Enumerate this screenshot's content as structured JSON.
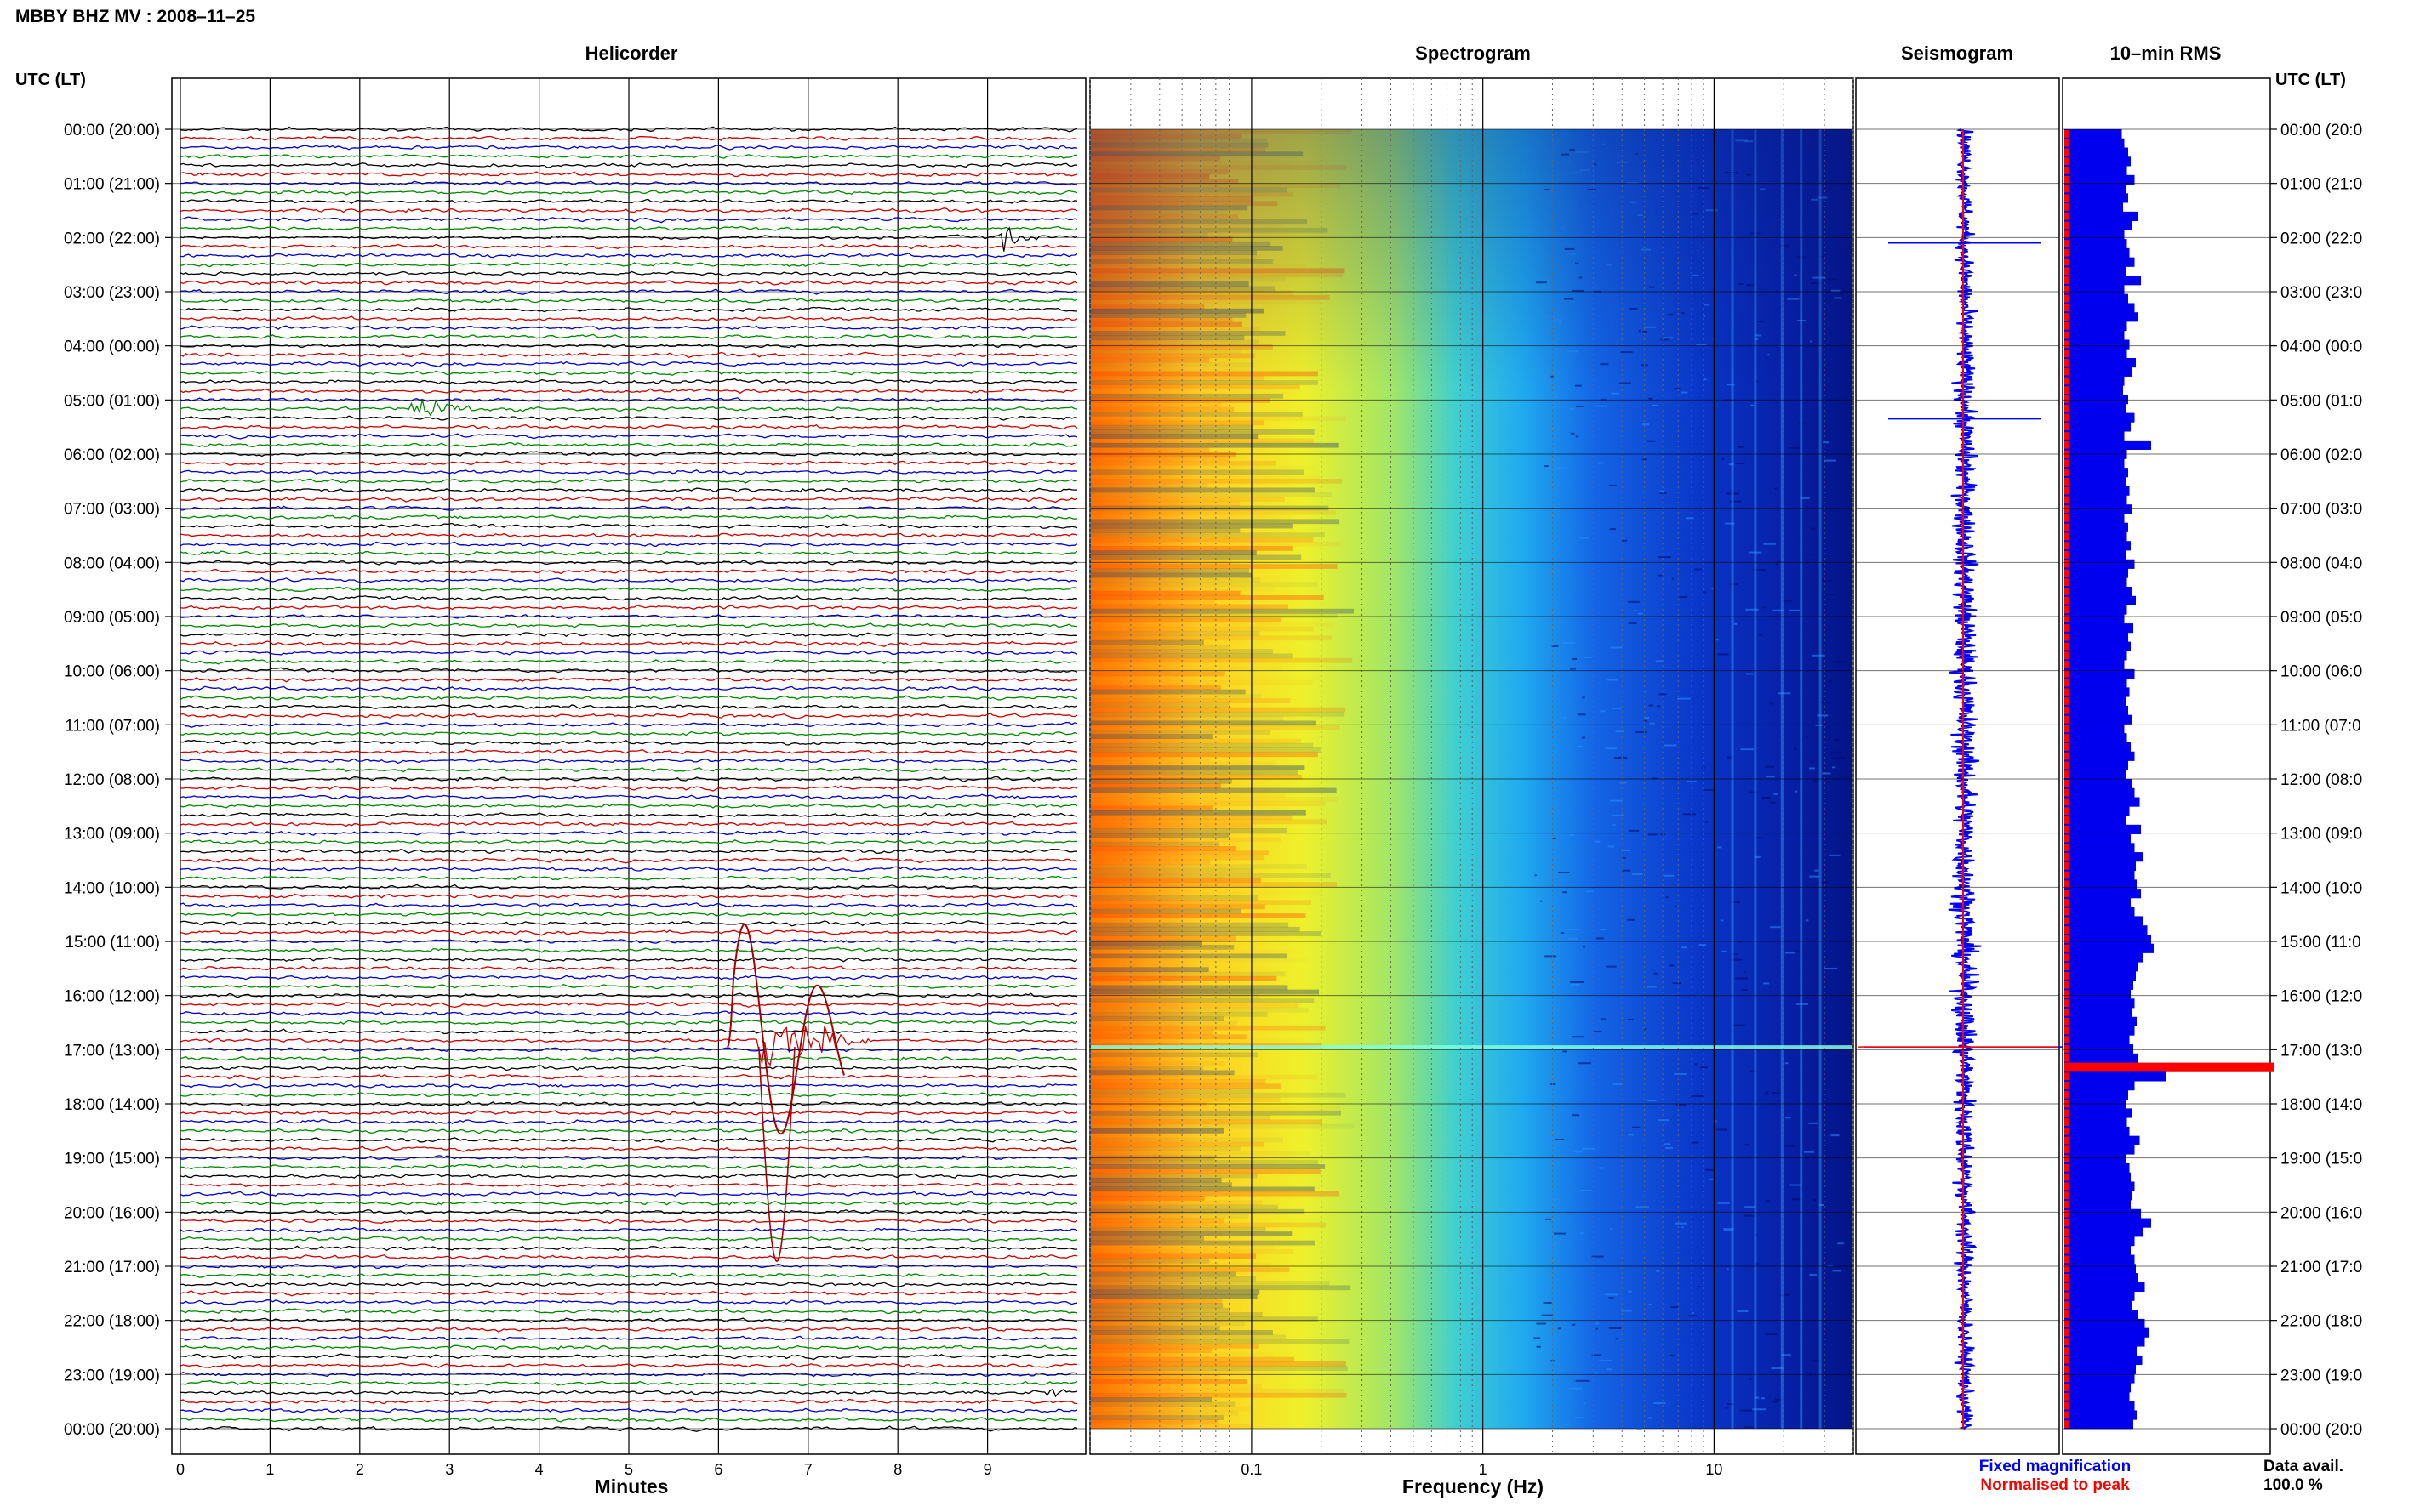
{
  "header": {
    "station_title": "MBBY BHZ MV : 2008–11–25",
    "time_axis_label": "UTC (LT)"
  },
  "panels": {
    "helicorder": "Helicorder",
    "spectrogram": "Spectrogram",
    "seismogram": "Seismogram",
    "rms": "10–min RMS"
  },
  "footer": {
    "minutes_label": "Minutes",
    "frequency_label": "Frequency (Hz)",
    "legend_fixed": "Fixed magnification",
    "legend_normalised": "Normalised to peak",
    "data_avail_label": "Data avail.",
    "data_avail_value": "100.0 %"
  },
  "colors": {
    "fixed_magnification": "#0000ff",
    "normalised_to_peak": "#ff0000",
    "helicorder_traces": [
      "#000000",
      "#cc0000",
      "#0000cc",
      "#008800"
    ],
    "spectrogram_low": "#00007a",
    "spectrogram_high": "#ff3300"
  },
  "chart_data": [
    {
      "type": "line",
      "title": "Helicorder",
      "xlabel": "Minutes",
      "x_ticks": [
        "0",
        "1",
        "2",
        "3",
        "4",
        "5",
        "6",
        "7",
        "8",
        "9"
      ],
      "xlim": [
        0,
        10
      ],
      "traces_per_hour": 6,
      "left_row_labels": [
        "00:00 (20:00)",
        "01:00 (21:00)",
        "02:00 (22:00)",
        "03:00 (23:00)",
        "04:00 (00:00)",
        "05:00 (01:00)",
        "06:00 (02:00)",
        "07:00 (03:00)",
        "08:00 (04:00)",
        "09:00 (05:00)",
        "10:00 (06:00)",
        "11:00 (07:00)",
        "12:00 (08:00)",
        "13:00 (09:00)",
        "14:00 (10:00)",
        "15:00 (11:00)",
        "16:00 (12:00)",
        "17:00 (13:00)",
        "18:00 (14:00)",
        "19:00 (15:00)",
        "20:00 (16:00)",
        "21:00 (17:00)",
        "22:00 (18:00)",
        "23:00 (19:00)",
        "00:00 (20:00)"
      ],
      "right_row_labels": [
        "00:00 (20:0",
        "01:00 (21:0",
        "02:00 (22:0",
        "03:00 (23:0",
        "04:00 (00:0",
        "05:00 (01:0",
        "06:00 (02:0",
        "07:00 (03:0",
        "08:00 (04:0",
        "09:00 (05:0",
        "10:00 (06:0",
        "11:00 (07:0",
        "12:00 (08:0",
        "13:00 (09:0",
        "14:00 (10:0",
        "15:00 (11:0",
        "16:00 (12:0",
        "17:00 (13:0",
        "18:00 (14:0",
        "19:00 (15:0",
        "20:00 (16:0",
        "21:00 (17:0",
        "22:00 (18:0",
        "23:00 (19:0",
        "00:00 (20:0"
      ],
      "events": [
        {
          "hour": 1.93,
          "minute": 9.2,
          "amplitude": 3.0,
          "duration_min": 0.5
        },
        {
          "hour": 5.13,
          "minute": 2.6,
          "amplitude": 2.2,
          "duration_min": 1.2
        },
        {
          "hour": 16.9,
          "minute": 6.5,
          "amplitude": 9.0,
          "duration_min": 1.2
        },
        {
          "hour": 23.3,
          "minute": 9.7,
          "amplitude": 1.5,
          "duration_min": 0.3
        }
      ]
    },
    {
      "type": "heatmap",
      "title": "Spectrogram",
      "xlabel": "Frequency (Hz)",
      "x_scale": "log",
      "xlim": [
        0.02,
        40
      ],
      "x_ticks": [
        {
          "label": "0.1",
          "value": 0.1
        },
        {
          "label": "1",
          "value": 1
        },
        {
          "label": "10",
          "value": 10
        }
      ],
      "ylim_hours": [
        0,
        24
      ],
      "strong_line_hour": 16.95
    },
    {
      "type": "line",
      "title": "Seismogram",
      "series": [
        {
          "name": "Fixed magnification",
          "color": "#0000ff"
        },
        {
          "name": "Normalised to peak",
          "color": "#ff0000"
        }
      ],
      "spikes_hour": [
        2.1,
        5.35,
        16.95
      ]
    },
    {
      "type": "bar",
      "title": "10–min RMS",
      "orientation": "horizontal",
      "interval_minutes": 10,
      "peak_hour": 16.95,
      "values": [
        0.45,
        0.47,
        0.5,
        0.52,
        0.49,
        0.55,
        0.48,
        0.5,
        0.46,
        0.58,
        0.53,
        0.47,
        0.49,
        0.51,
        0.55,
        0.48,
        0.6,
        0.47,
        0.5,
        0.55,
        0.58,
        0.49,
        0.47,
        0.51,
        0.49,
        0.56,
        0.53,
        0.47,
        0.46,
        0.5,
        0.48,
        0.55,
        0.52,
        0.47,
        0.68,
        0.49,
        0.47,
        0.5,
        0.48,
        0.51,
        0.49,
        0.53,
        0.47,
        0.5,
        0.49,
        0.52,
        0.48,
        0.55,
        0.5,
        0.49,
        0.53,
        0.56,
        0.49,
        0.47,
        0.54,
        0.5,
        0.52,
        0.49,
        0.47,
        0.55,
        0.49,
        0.51,
        0.48,
        0.5,
        0.53,
        0.47,
        0.49,
        0.52,
        0.55,
        0.5,
        0.48,
        0.53,
        0.55,
        0.59,
        0.51,
        0.48,
        0.6,
        0.52,
        0.55,
        0.62,
        0.56,
        0.55,
        0.57,
        0.6,
        0.52,
        0.55,
        0.62,
        0.65,
        0.68,
        0.7,
        0.62,
        0.58,
        0.56,
        0.54,
        0.52,
        0.55,
        0.53,
        0.57,
        0.55,
        0.51,
        0.54,
        0.58,
        1.0,
        0.8,
        0.55,
        0.5,
        0.48,
        0.53,
        0.49,
        0.51,
        0.59,
        0.55,
        0.48,
        0.51,
        0.52,
        0.55,
        0.53,
        0.52,
        0.6,
        0.68,
        0.62,
        0.55,
        0.52,
        0.55,
        0.56,
        0.58,
        0.63,
        0.55,
        0.53,
        0.58,
        0.63,
        0.66,
        0.63,
        0.57,
        0.61,
        0.56,
        0.55,
        0.52,
        0.51,
        0.55,
        0.57,
        0.54
      ]
    }
  ]
}
